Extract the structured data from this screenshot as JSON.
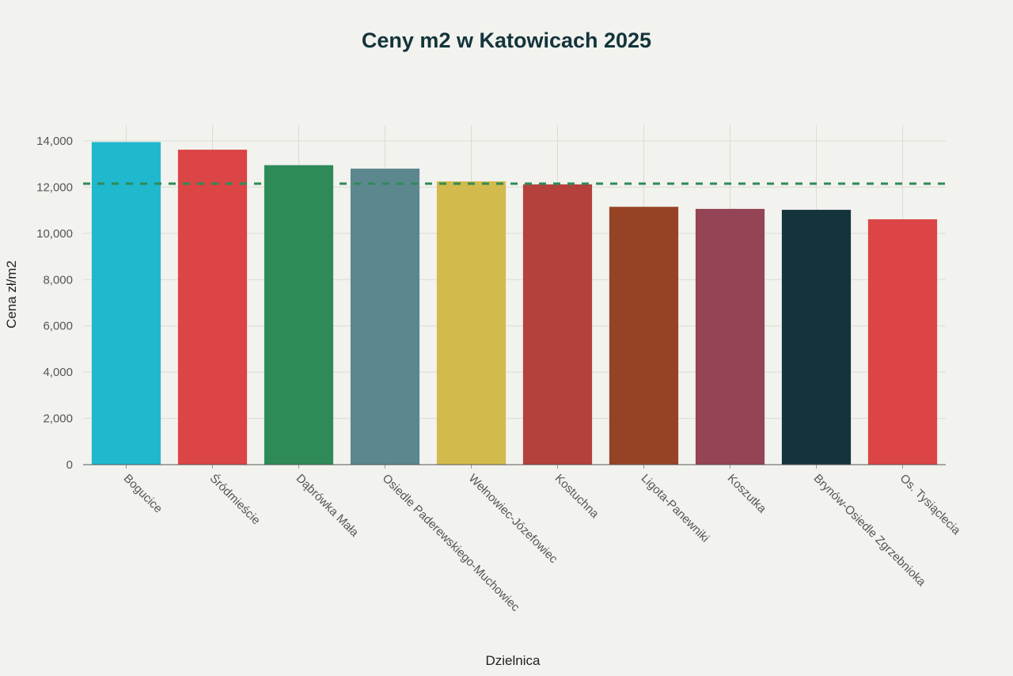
{
  "title": "Ceny m2 w Katowicach 2025",
  "x_axis_title": "Dzielnica",
  "y_axis_title": "Cena zł/m2",
  "chart_data": {
    "type": "bar",
    "title": "Ceny m2 w Katowicach 2025",
    "xlabel": "Dzielnica",
    "ylabel": "Cena zł/m2",
    "categories": [
      "Bogucice",
      "Śródmieście",
      "Dąbrówka Mała",
      "Osiedle Paderewskiego-Muchowiec",
      "Wełnowiec-Józefowiec",
      "Kostuchna",
      "Ligota-Panewniki",
      "Koszutka",
      "Brynów-Osiedle Zgrzebnioka",
      "Os. Tysiąclecia"
    ],
    "values": [
      13950,
      13620,
      12950,
      12800,
      12250,
      12120,
      11150,
      11060,
      11020,
      10610
    ],
    "colors": [
      "#1fb8cd",
      "#db4545",
      "#2e8b57",
      "#5d878f",
      "#d2ba4c",
      "#b4413c",
      "#964325",
      "#944454",
      "#13343b",
      "#db4545"
    ],
    "reference_line": {
      "value": 12150,
      "style": "dashed",
      "color": "#2e8b57"
    },
    "ylim": [
      0,
      14000
    ],
    "yticks": [
      0,
      2000,
      4000,
      6000,
      8000,
      10000,
      12000,
      14000
    ],
    "ytick_labels": [
      "0",
      "2,000",
      "4,000",
      "6,000",
      "8,000",
      "10,000",
      "12,000",
      "14,000"
    ],
    "grid": true,
    "legend": null
  }
}
